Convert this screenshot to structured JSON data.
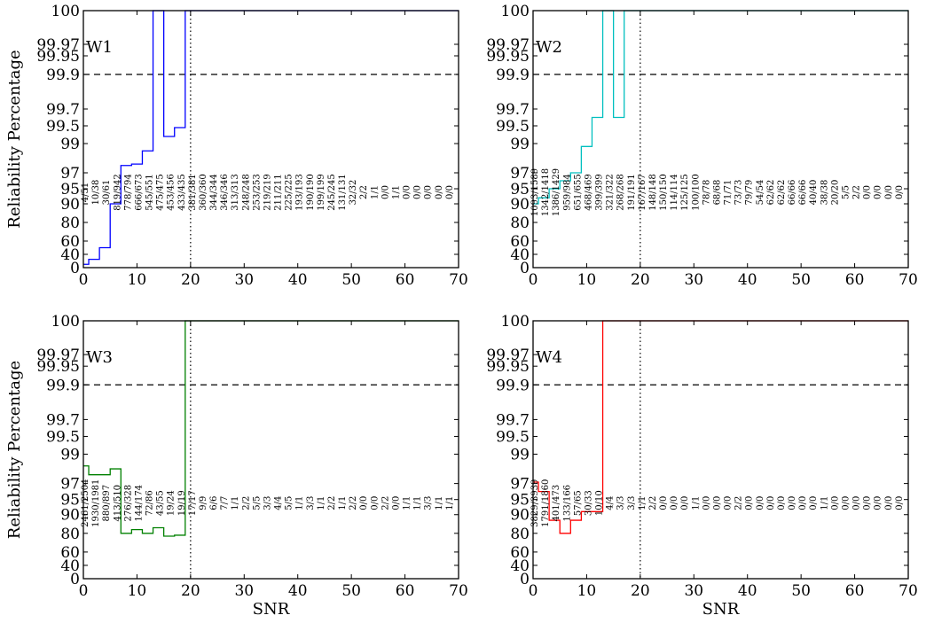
{
  "chart_data": [
    {
      "type": "line",
      "panel_label": "W1",
      "color": "#0000ff",
      "ylabel": "Reliability Percentage",
      "xlabel": "",
      "xlim": [
        0,
        70
      ],
      "x_ticks": [
        0,
        10,
        20,
        30,
        40,
        50,
        60,
        70
      ],
      "y_ticks": [
        "100",
        "99.97",
        "99.95",
        "99.9",
        "99.7",
        "99.5",
        "99",
        "97",
        "95",
        "90",
        "80",
        "60",
        "40",
        "0"
      ],
      "threshold_y": "99.9",
      "vline_x": 20,
      "series": [
        {
          "x": [
            0,
            1,
            3,
            5,
            7,
            9,
            11,
            13,
            15,
            17,
            19,
            21,
            70
          ],
          "y": [
            10,
            25,
            50,
            90,
            97.5,
            97.6,
            98.5,
            100,
            99.2,
            99.45,
            100,
            100,
            100
          ]
        }
      ],
      "annotations": [
        "4/51",
        "10/38",
        "30/61",
        "819/942",
        "778/794",
        "666/673",
        "545/551",
        "475/475",
        "453/456",
        "433/435",
        "381/381",
        "360/360",
        "344/344",
        "346/346",
        "313/313",
        "248/248",
        "253/253",
        "219/219",
        "211/211",
        "225/225",
        "193/193",
        "190/190",
        "199/199",
        "245/245",
        "131/131",
        "32/32",
        "2/2",
        "1/1",
        "0/0",
        "1/1",
        "0/0",
        "0/0",
        "0/0",
        "0/0",
        "0/0"
      ]
    },
    {
      "type": "line",
      "panel_label": "W2",
      "color": "#00bfbf",
      "ylabel": "",
      "xlabel": "",
      "xlim": [
        0,
        70
      ],
      "x_ticks": [
        0,
        10,
        20,
        30,
        40,
        50,
        60,
        70
      ],
      "y_ticks": [
        "100",
        "99.97",
        "99.95",
        "99.9",
        "99.7",
        "99.5",
        "99",
        "97",
        "95",
        "90",
        "80",
        "60",
        "40",
        "0"
      ],
      "threshold_y": "99.9",
      "vline_x": 20,
      "series": [
        {
          "x": [
            0,
            1,
            3,
            5,
            7,
            9,
            11,
            13,
            15,
            17,
            70
          ],
          "y": [
            90,
            92,
            95,
            96,
            97,
            98.8,
            99.6,
            100,
            99.6,
            100,
            100
          ]
        }
      ],
      "annotations": [
        "1093/1589",
        "1342/1418",
        "1386/1429",
        "959/984",
        "651/655",
        "468/469",
        "399/399",
        "321/322",
        "268/268",
        "191/191",
        "167/167",
        "148/148",
        "150/150",
        "114/114",
        "125/125",
        "100/100",
        "78/78",
        "68/68",
        "71/71",
        "73/73",
        "79/79",
        "54/54",
        "62/62",
        "62/62",
        "66/66",
        "66/66",
        "40/40",
        "38/38",
        "20/20",
        "5/5",
        "2/2",
        "0/0",
        "0/0",
        "0/0",
        "0/0"
      ]
    },
    {
      "type": "line",
      "panel_label": "W3",
      "color": "#008000",
      "ylabel": "Reliability Percentage",
      "xlabel": "SNR",
      "xlim": [
        0,
        70
      ],
      "x_ticks": [
        0,
        10,
        20,
        30,
        40,
        50,
        60,
        70
      ],
      "y_ticks": [
        "100",
        "99.97",
        "99.95",
        "99.9",
        "99.7",
        "99.5",
        "99",
        "97",
        "95",
        "90",
        "80",
        "60",
        "40",
        "0"
      ],
      "threshold_y": "99.9",
      "vline_x": 20,
      "series": [
        {
          "x": [
            0,
            1,
            3,
            5,
            7,
            9,
            11,
            13,
            15,
            17,
            19,
            70
          ],
          "y": [
            98.2,
            97.6,
            97.6,
            98,
            80,
            82,
            80,
            83,
            77,
            78,
            100,
            100
          ]
        }
      ],
      "annotations": [
        "2461/2504",
        "1930/1981",
        "880/897",
        "413/510",
        "276/328",
        "144/174",
        "72/86",
        "43/55",
        "19/24",
        "19/19",
        "17/17",
        "9/9",
        "6/6",
        "7/7",
        "1/1",
        "2/2",
        "5/5",
        "3/3",
        "4/4",
        "5/5",
        "1/1",
        "3/3",
        "1/1",
        "2/2",
        "1/1",
        "2/2",
        "0/0",
        "0/0",
        "2/2",
        "0/0",
        "1/1",
        "1/1",
        "3/3",
        "1/1",
        "1/1"
      ]
    },
    {
      "type": "line",
      "panel_label": "W4",
      "color": "#ff0000",
      "ylabel": "",
      "xlabel": "SNR",
      "xlim": [
        0,
        70
      ],
      "x_ticks": [
        0,
        10,
        20,
        30,
        40,
        50,
        60,
        70
      ],
      "y_ticks": [
        "100",
        "99.97",
        "99.95",
        "99.9",
        "99.7",
        "99.5",
        "99",
        "97",
        "95",
        "90",
        "80",
        "60",
        "40",
        "0"
      ],
      "threshold_y": "99.9",
      "vline_x": 20,
      "series": [
        {
          "x": [
            0,
            1,
            3,
            5,
            7,
            9,
            11,
            13,
            70
          ],
          "y": [
            97.1,
            96,
            87,
            80,
            87,
            91,
            91,
            100,
            100
          ]
        }
      ],
      "annotations": [
        "3829/3939",
        "1791/1860",
        "401/473",
        "133/166",
        "57/65",
        "30/33",
        "10/10",
        "4/4",
        "3/3",
        "3/3",
        "1/1",
        "2/2",
        "0/0",
        "0/0",
        "0/0",
        "1/1",
        "0/0",
        "0/0",
        "0/0",
        "2/2",
        "0/0",
        "0/0",
        "0/0",
        "0/0",
        "0/0",
        "0/0",
        "0/0",
        "1/1",
        "0/0",
        "0/0",
        "0/0",
        "0/0",
        "0/0",
        "0/0",
        "0/0"
      ]
    }
  ]
}
